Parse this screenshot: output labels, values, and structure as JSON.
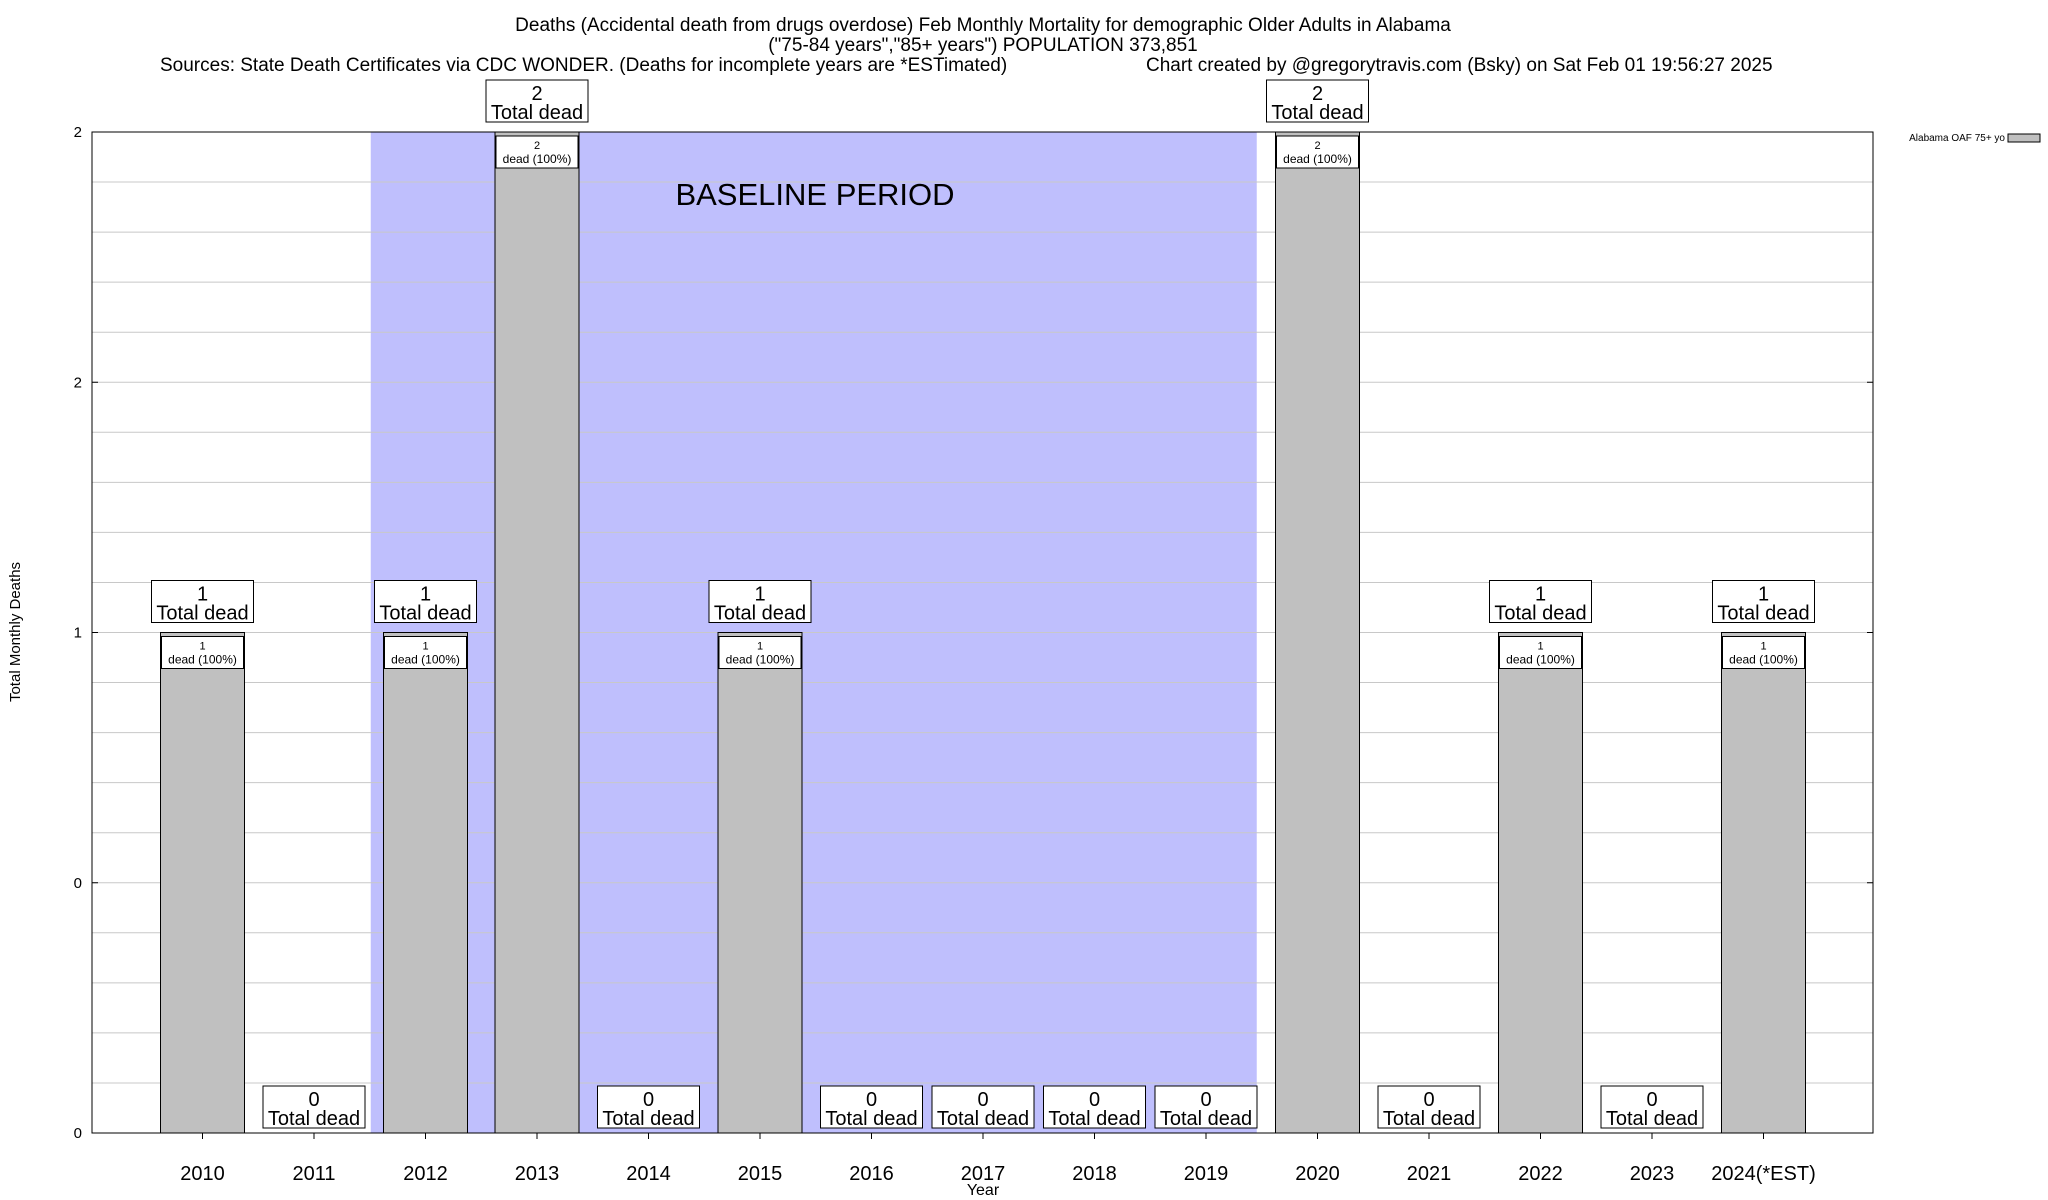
{
  "chart_data": {
    "type": "bar",
    "title_lines": [
      "Deaths (Accidental death from drugs overdose) Feb Monthly Mortality for demographic Older Adults in Alabama",
      "(\"75-84 years\",\"85+ years\") POPULATION 373,851"
    ],
    "sources": "Sources: State Death Certificates via CDC WONDER. (Deaths for incomplete years are *ESTimated)",
    "credit": "Chart created by @gregorytravis.com (Bsky) on Sat Feb 01 19:56:27 2025",
    "xlabel": "Year",
    "ylabel": "Total Monthly Deaths",
    "categories": [
      "2010",
      "2011",
      "2012",
      "2013",
      "2014",
      "2015",
      "2016",
      "2017",
      "2018",
      "2019",
      "2020",
      "2021",
      "2022",
      "2023",
      "2024(*EST)"
    ],
    "values": [
      1,
      0,
      1,
      2,
      0,
      1,
      0,
      0,
      0,
      0,
      2,
      0,
      1,
      0,
      1
    ],
    "series": [
      {
        "name": "Alabama OAF 75+ yo",
        "values": [
          1,
          0,
          1,
          2,
          0,
          1,
          0,
          0,
          0,
          0,
          2,
          0,
          1,
          0,
          1
        ]
      }
    ],
    "ylim": [
      0,
      2
    ],
    "yticks": [
      "0",
      "0",
      "1",
      "2",
      "2"
    ],
    "grid": true,
    "legend_position": "top-right",
    "baseline": {
      "label": "BASELINE PERIOD",
      "from": "2012",
      "to": "2019"
    },
    "total_label_suffix": "Total dead",
    "bar_label_suffix": "dead (100%)",
    "colors": {
      "bar": "#c0c0c0",
      "baseline_band": "#bfbffd",
      "grid": "#c8c8c8"
    }
  }
}
